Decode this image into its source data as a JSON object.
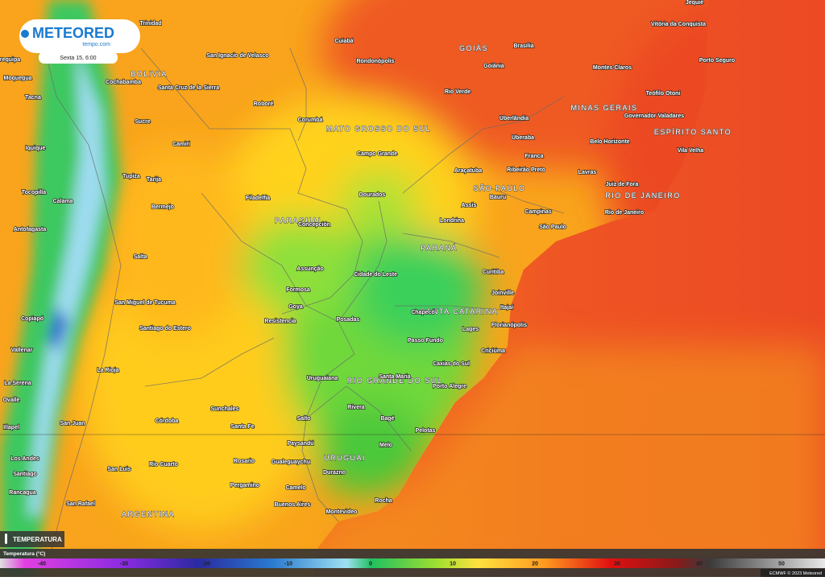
{
  "header": {
    "brand": "METEORED",
    "site": "tempo.com",
    "time": "Sexta 15, 6:00"
  },
  "regions": [
    "BOLIVIA",
    "PARAGUAI",
    "MATO GROSSO DO SUL",
    "GOIÁS",
    "MINAS GERAIS",
    "ESPÍRITO SANTO",
    "SÃO PAULO",
    "RIO DE JANEIRO",
    "PARANÁ",
    "SANTA CATARINA",
    "RIO GRANDE DO SUL",
    "URUGUAI",
    "ARGENTINA"
  ],
  "places": [
    "Trinidad",
    "San Ignacio de Velasco",
    "Cuiabá",
    "Rondonópolis",
    "Brasília",
    "Goiânia",
    "Jequié",
    "Vitória da Conquista",
    "Porto Seguro",
    "Montes Claros",
    "Teófilo Otoni",
    "Governador Valadares",
    "Vila Velha",
    "Belo Horizonte",
    "Uberlândia",
    "Uberaba",
    "Rio Verde",
    "Franca",
    "Ribeirão Preto",
    "Araçatuba",
    "Lavras",
    "Juiz de Fora",
    "Rio de Janeiro",
    "Bauru",
    "Assis",
    "Campinas",
    "São Paulo",
    "Londrina",
    "Curitiba",
    "Joinville",
    "Itajaí",
    "Florianópolis",
    "Chapecó",
    "Lages",
    "Passo Fundo",
    "Criciúma",
    "Caxias do Sul",
    "Porto Alegre",
    "Santa Maria",
    "Uruguaiana",
    "Pelotas",
    "Bagé",
    "Rivera",
    "Melo",
    "Durazno",
    "Rocha",
    "Montevideo",
    "Buenos Aires",
    "Camelo",
    "Gualeguaychu",
    "Paysandú",
    "Salto",
    "Rosario",
    "Pergamino",
    "Santa Fe",
    "Sunchales",
    "Córdoba",
    "Rio Cuarto",
    "San Luis",
    "San Rafael",
    "San Juan",
    "La Rioja",
    "Santiago do Estero",
    "San Miguel de Tucuma",
    "Salta",
    "Resistencia",
    "Posadas",
    "Goya",
    "Formosa",
    "Assunção",
    "Cidade do Leste",
    "Concepción",
    "Filadelfia",
    "Dourados",
    "Campo Grande",
    "Corumbá",
    "Roboré",
    "Santa Cruz de la Sierra",
    "Cochabamba",
    "Sucre",
    "Camiri",
    "Tupiza",
    "Tarija",
    "Bermejo",
    "Iquique",
    "Tocopilla",
    "Calama",
    "Antofagasta",
    "Copiapó",
    "Vallenar",
    "La Serena",
    "Ovalle",
    "Illapel",
    "Los Andes",
    "Santiago",
    "Rancagua",
    "Arequipa",
    "Moquegua",
    "Tacna"
  ],
  "legend": {
    "title": "TEMPERATURA",
    "subtitle": "Temperatura (°C)",
    "ticks": [
      -40,
      -30,
      -20,
      -10,
      0,
      10,
      20,
      30,
      40,
      50
    ]
  },
  "footer": "ECMWF © 2023 Meteored"
}
